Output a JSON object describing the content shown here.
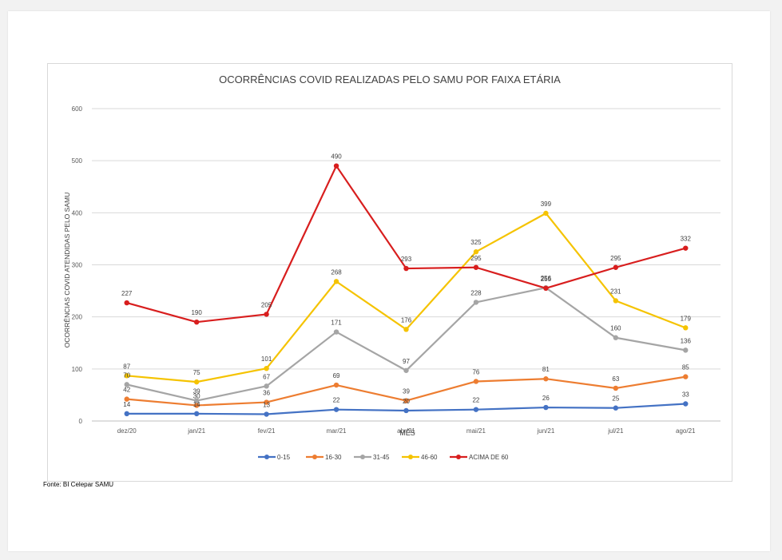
{
  "chart_data": {
    "type": "line",
    "title": "OCORRÊNCIAS COVID REALIZADAS PELO SAMU POR FAIXA ETÁRIA",
    "xlabel": "MÊS",
    "ylabel": "OCORRÊNCIAS COVID ATENDIDAS PELO SAMU",
    "ylim": [
      0,
      600
    ],
    "yticks": [
      "0",
      "100",
      "200",
      "300",
      "400",
      "500",
      "600"
    ],
    "categories": [
      "dez/20",
      "jan/21",
      "fev/21",
      "mar/21",
      "abr/21",
      "mai/21",
      "jun/21",
      "jul/21",
      "ago/21"
    ],
    "grid": true,
    "legend_position": "bottom",
    "series": [
      {
        "name": "0-15",
        "color": "#4472c4",
        "values": [
          14,
          14,
          13,
          22,
          20,
          22,
          26,
          25,
          33
        ]
      },
      {
        "name": "16-30",
        "color": "#ed7d31",
        "values": [
          42,
          30,
          36,
          69,
          39,
          76,
          81,
          63,
          85
        ]
      },
      {
        "name": "31-45",
        "color": "#a5a5a5",
        "values": [
          70,
          39,
          67,
          171,
          97,
          228,
          256,
          160,
          136
        ]
      },
      {
        "name": "46-60",
        "color": "#f5c300",
        "values": [
          87,
          75,
          101,
          268,
          176,
          325,
          399,
          231,
          179
        ]
      },
      {
        "name": "ACIMA DE 60",
        "color": "#d81e1e",
        "values": [
          227,
          190,
          205,
          490,
          293,
          295,
          255,
          295,
          332
        ]
      }
    ]
  },
  "source": "Fonte: BI Celepar SAMU"
}
